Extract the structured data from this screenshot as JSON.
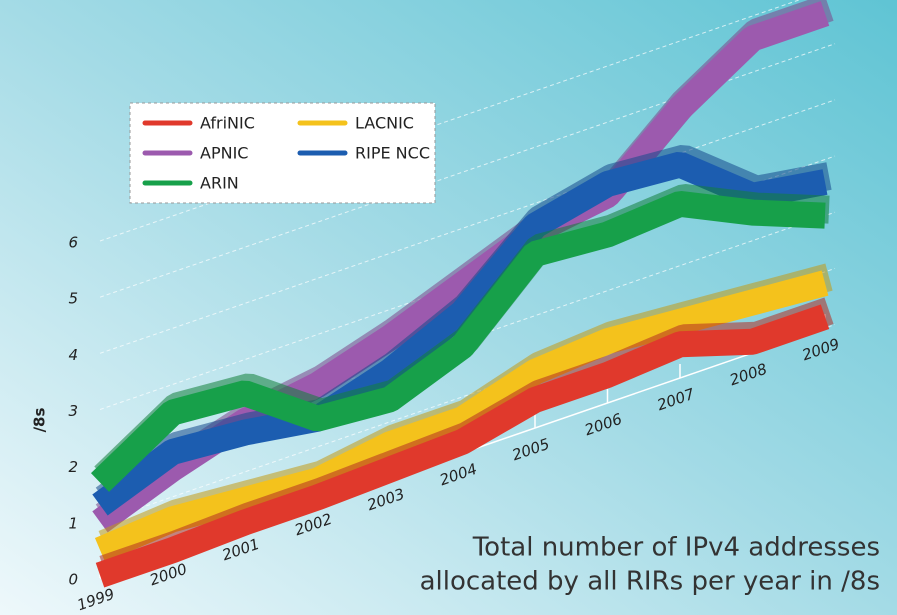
{
  "chart_data": {
    "type": "ribbon",
    "annotation": [
      "Total number of IPv4 addresses",
      "allocated by all RIRs per year in /8s"
    ],
    "y_label": "/8s",
    "categories": [
      "1999",
      "2000",
      "2001",
      "2002",
      "2003",
      "2004",
      "2005",
      "2006",
      "2007",
      "2008",
      "2009"
    ],
    "series": [
      {
        "name": "AfriNIC",
        "color": "#e0392c",
        "values": [
          0.05,
          0.05,
          0.1,
          0.1,
          0.15,
          0.2,
          0.5,
          0.5,
          0.6,
          0.2,
          0.2
        ]
      },
      {
        "name": "APNIC",
        "color": "#9c5aae",
        "values": [
          1.0,
          1.5,
          1.9,
          2.1,
          2.5,
          3.0,
          3.5,
          3.7,
          4.8,
          5.6,
          5.6
        ]
      },
      {
        "name": "ARIN",
        "color": "#17a04a",
        "values": [
          1.7,
          2.5,
          2.4,
          1.5,
          1.4,
          1.9,
          3.1,
          3.0,
          3.1,
          2.5,
          2.0
        ]
      },
      {
        "name": "LACNIC",
        "color": "#f4c21c",
        "values": [
          0.5,
          0.6,
          0.5,
          0.4,
          0.6,
          0.6,
          1.0,
          1.1,
          1.0,
          0.9,
          0.8
        ]
      },
      {
        "name": "RIPE NCC",
        "color": "#1c5db0",
        "values": [
          1.3,
          1.8,
          1.7,
          1.5,
          1.9,
          2.5,
          3.6,
          3.9,
          3.8,
          2.8,
          2.6
        ]
      }
    ],
    "ylim": [
      0,
      6
    ],
    "yticks": [
      0,
      1,
      2,
      3,
      4,
      5,
      6
    ],
    "grid": true
  }
}
